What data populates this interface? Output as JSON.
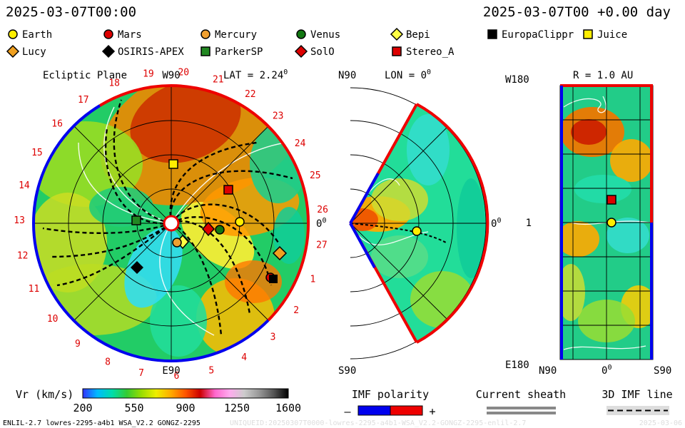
{
  "header": {
    "datetime_left": "2025-03-07T00:00",
    "datetime_right": "2025-03-07T00 +0.00 day"
  },
  "legend": {
    "items": [
      {
        "name": "Earth",
        "marker": "circle",
        "color": "#ffee00"
      },
      {
        "name": "Mars",
        "marker": "circle",
        "color": "#dd0000"
      },
      {
        "name": "Mercury",
        "marker": "circle",
        "color": "#f0a030"
      },
      {
        "name": "Venus",
        "marker": "circle",
        "color": "#117711"
      },
      {
        "name": "Bepi",
        "marker": "diamond",
        "color": "#ffff44"
      },
      {
        "name": "EuropaClippr",
        "marker": "square",
        "color": "#000000"
      },
      {
        "name": "Juice",
        "marker": "square",
        "color": "#ffee00"
      },
      {
        "name": "Lucy",
        "marker": "diamond",
        "color": "#f0a020"
      },
      {
        "name": "OSIRIS-APEX",
        "marker": "diamond",
        "color": "#000000"
      },
      {
        "name": "ParkerSP",
        "marker": "square",
        "color": "#228822"
      },
      {
        "name": "SolO",
        "marker": "diamond",
        "color": "#dd0000"
      },
      {
        "name": "Stereo_A",
        "marker": "square",
        "color": "#dd0000"
      }
    ]
  },
  "panels": {
    "ecliptic": {
      "title": "Ecliptic Plane",
      "top_label": "W90",
      "lat_label": "LAT = 2.24",
      "lat_sup": "0",
      "right_label": "0",
      "right_sup": "0",
      "bottom_label": "E90",
      "carrington_labels": [
        "1",
        "2",
        "3",
        "4",
        "5",
        "6",
        "7",
        "8",
        "9",
        "10",
        "11",
        "12",
        "13",
        "14",
        "15",
        "16",
        "17",
        "18",
        "19",
        "20",
        "21",
        "22",
        "23",
        "24",
        "25",
        "26",
        "27"
      ]
    },
    "meridional": {
      "top_label": "N90",
      "lon_label": "LON = 0",
      "lon_sup": "0",
      "right_label": "0",
      "right_sup": "0",
      "bottom_label": "S90"
    },
    "map": {
      "top_label": "W180",
      "r_label": "R = 1.0 AU",
      "mid_label": "1",
      "bottom_label": "E180",
      "x_labels": [
        "N90",
        "0",
        "S90"
      ],
      "x_sup": "0"
    }
  },
  "colorbar": {
    "label": "Vr (km/s)",
    "ticks": [
      "200",
      "550",
      "900",
      "1250",
      "1600"
    ],
    "stops": [
      "#3333ff",
      "#00bbff",
      "#00ddaa",
      "#33cc33",
      "#99dd00",
      "#eeee00",
      "#ffaa00",
      "#ff5500",
      "#cc0000",
      "#ff66cc",
      "#ffaaee",
      "#cccccc",
      "#999999",
      "#555555",
      "#000000"
    ]
  },
  "imf": {
    "title": "IMF polarity",
    "minus": "–",
    "plus": "+",
    "neg_color": "#0000ee",
    "pos_color": "#ee0000"
  },
  "sheath": {
    "title": "Current sheath"
  },
  "imfline": {
    "title": "3D IMF line"
  },
  "footer": {
    "left": "ENLIL-2.7 lowres-2295-a4b1 WSA_V2.2 GONGZ-2295",
    "mid": "UNIQUEID:20250307T0000-lowres-2295-a4b1-WSA_V2.2-GONGZ-2295-enlil-2.7",
    "right": "2025-03-06"
  },
  "chart_data": {
    "type": "heatmap",
    "quantity": "Vr (km/s)",
    "color_range": [
      200,
      1600
    ],
    "views": [
      "Ecliptic Plane",
      "LON = 0",
      "R = 1.0 AU"
    ],
    "ecliptic_lat_deg": 2.24,
    "meridional_lon_deg": 0,
    "map_radius_au": 1.0
  }
}
